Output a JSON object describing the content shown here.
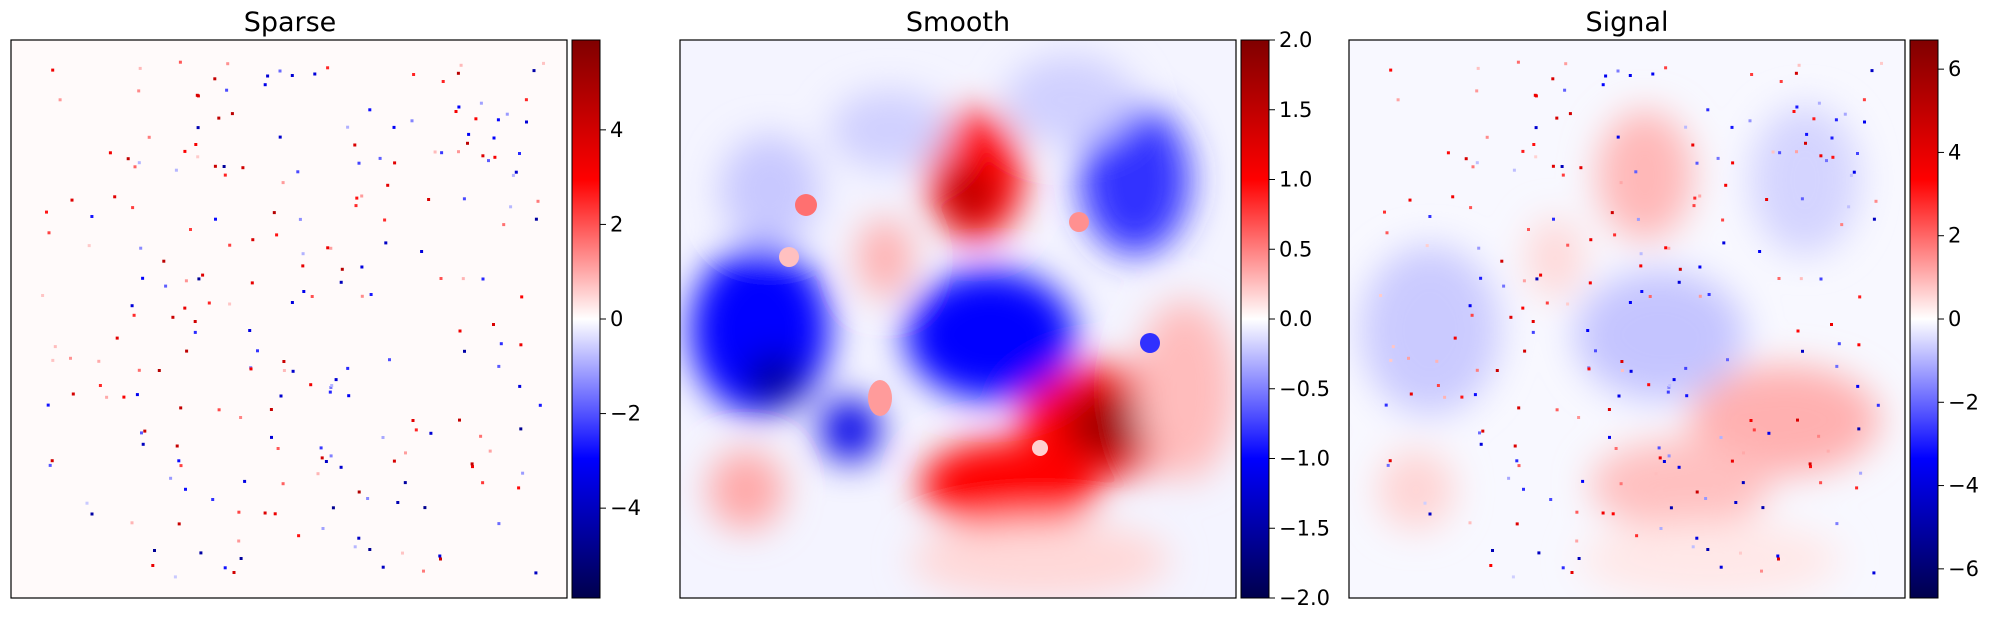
{
  "chart_data": [
    {
      "type": "heatmap",
      "title": "Sparse",
      "colormap": "seismic",
      "colorbar": {
        "vmin": -5.9,
        "vmax": 5.9,
        "ticks": [
          -4,
          -2,
          0,
          2,
          4
        ],
        "tick_labels": [
          "−4",
          "−2",
          "0",
          "2",
          "4"
        ]
      },
      "xlabel": "",
      "ylabel": "",
      "axes_ticks": false,
      "content": "mostly zero field with a few hundred isolated single-pixel spikes of both signs"
    },
    {
      "type": "heatmap",
      "title": "Smooth",
      "colormap": "seismic",
      "colorbar": {
        "vmin": -2.0,
        "vmax": 2.0,
        "ticks": [
          -2.0,
          -1.5,
          -1.0,
          -0.5,
          0.0,
          0.5,
          1.0,
          1.5,
          2.0
        ],
        "tick_labels": [
          "−2.0",
          "−1.5",
          "−1.0",
          "−0.5",
          "0.0",
          "0.5",
          "1.0",
          "1.5",
          "2.0"
        ]
      },
      "xlabel": "",
      "ylabel": "",
      "axes_ticks": false,
      "content": "smooth blobby field: positive (red) band lower-right and upper-center, negative (blue) region center-left"
    },
    {
      "type": "heatmap",
      "title": "Signal",
      "colormap": "seismic",
      "colorbar": {
        "vmin": -6.7,
        "vmax": 6.7,
        "ticks": [
          -6,
          -4,
          -2,
          0,
          2,
          4,
          6
        ],
        "tick_labels": [
          "−6",
          "−4",
          "−2",
          "0",
          "2",
          "4",
          "6"
        ]
      },
      "xlabel": "",
      "ylabel": "",
      "axes_ticks": false,
      "content": "sum of the sparse spikes and the smooth field"
    }
  ]
}
